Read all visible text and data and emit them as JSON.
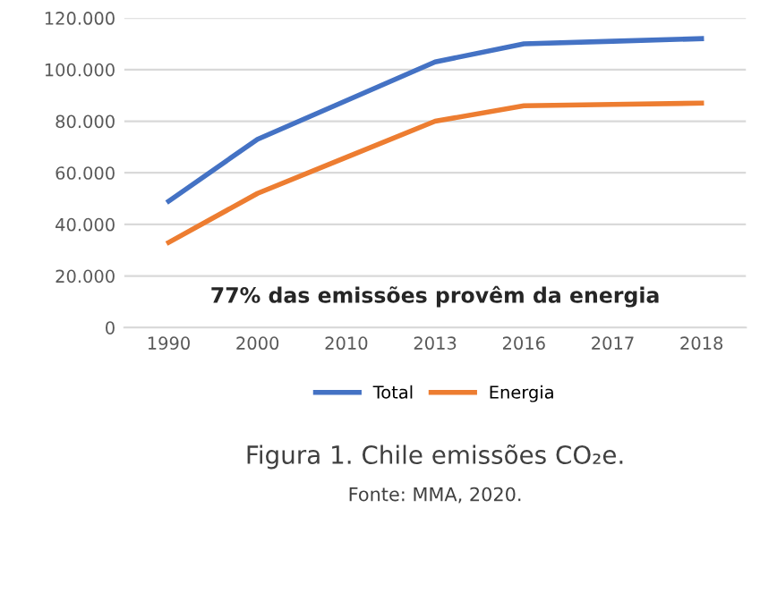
{
  "chart_data": {
    "type": "line",
    "title": "Figura 1. Chile emissões CO₂e.",
    "categories": [
      "1990",
      "2000",
      "2010",
      "2013",
      "2016",
      "2017",
      "2018"
    ],
    "series": [
      {
        "name": "Total",
        "color": "#4472c4",
        "values": [
          49000,
          73000,
          88000,
          103000,
          110000,
          111000,
          112000
        ]
      },
      {
        "name": "Energia",
        "color": "#ed7d31",
        "values": [
          33000,
          52000,
          66000,
          80000,
          86000,
          86500,
          87000
        ]
      }
    ],
    "ylim": [
      0,
      120000
    ],
    "yticks": [
      0,
      {
        "value": 20000,
        "label": "20.000"
      },
      {
        "value": 40000,
        "label": "40.000"
      },
      {
        "value": 60000,
        "label": "60.000"
      },
      {
        "value": 80000,
        "label": "80.000"
      },
      {
        "value": 100000,
        "label": "100.000"
      },
      {
        "value": 120000,
        "label": "120.000"
      }
    ],
    "grid": "y",
    "legend": "bottom",
    "marker": "none",
    "line_style": "solid",
    "annotations": [
      "77% das emissões provêm da energia",
      "Fonte: MMA, 2020."
    ]
  }
}
